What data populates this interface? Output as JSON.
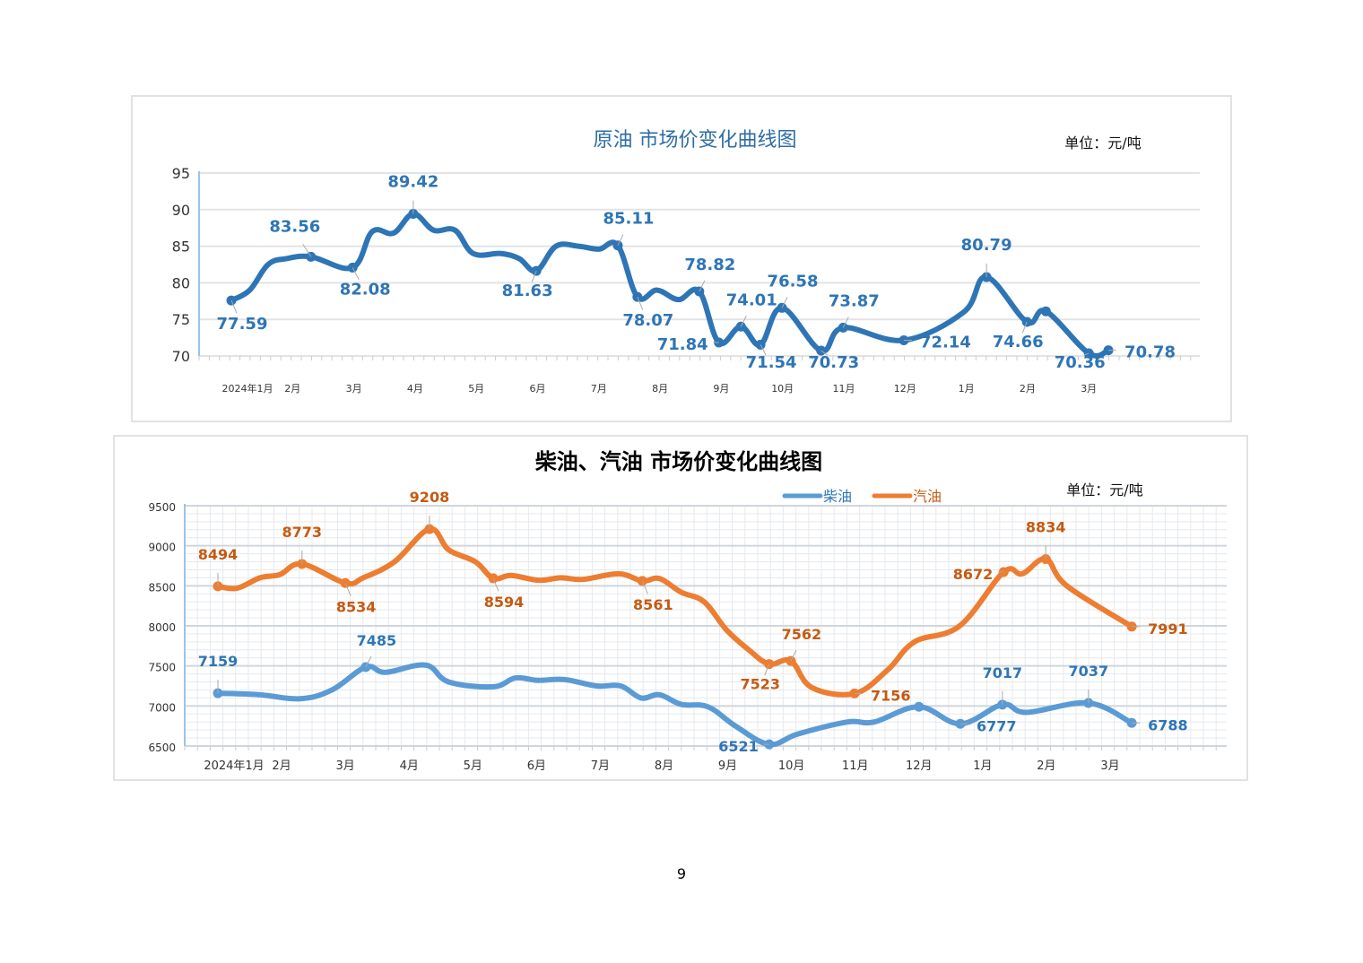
{
  "page_number": "9",
  "chart_data": [
    {
      "type": "line",
      "title": "原油 市场价变化曲线图",
      "unit": "单位：元/吨",
      "categories": [
        "2024年1月",
        "2月",
        "3月",
        "4月",
        "5月",
        "6月",
        "7月",
        "8月",
        "9月",
        "10月",
        "11月",
        "12月",
        "1月",
        "2月",
        "3月"
      ],
      "ylim": [
        70,
        95
      ],
      "yticks": [
        70,
        75,
        80,
        85,
        90,
        95
      ],
      "grid": true,
      "legend": "none",
      "color": "#2e75b6",
      "series": [
        {
          "color": "#2e75b6",
          "points": [
            [
              0.0,
              77.59
            ],
            [
              0.3,
              79
            ],
            [
              0.6,
              82.5
            ],
            [
              0.9,
              83.3
            ],
            [
              1.3,
              83.56
            ],
            [
              1.98,
              82.08
            ],
            [
              2.3,
              87
            ],
            [
              2.65,
              86.8
            ],
            [
              2.97,
              89.42
            ],
            [
              3.3,
              87.2
            ],
            [
              3.65,
              87.2
            ],
            [
              3.95,
              84
            ],
            [
              4.4,
              84
            ],
            [
              4.7,
              83.3
            ],
            [
              4.98,
              81.63
            ],
            [
              5.3,
              85
            ],
            [
              5.67,
              85
            ],
            [
              6.0,
              84.6
            ],
            [
              6.31,
              85.11
            ],
            [
              6.63,
              78.07
            ],
            [
              6.95,
              79
            ],
            [
              7.3,
              77.7
            ],
            [
              7.64,
              78.82
            ],
            [
              7.96,
              71.84
            ],
            [
              8.32,
              74.01
            ],
            [
              8.64,
              71.54
            ],
            [
              8.99,
              76.58
            ],
            [
              9.63,
              70.73
            ],
            [
              9.99,
              73.87
            ],
            [
              10.98,
              72.14
            ],
            [
              11.96,
              76
            ],
            [
              12.33,
              80.79
            ],
            [
              12.99,
              74.66
            ],
            [
              13.3,
              76.1
            ],
            [
              14.0,
              70.36
            ],
            [
              14.32,
              70.78
            ]
          ],
          "labels": [
            {
              "x": 0.0,
              "y": 77.59,
              "text": "77.59",
              "pos": "below"
            },
            {
              "x": 1.3,
              "y": 83.56,
              "text": "83.56",
              "pos": "above-left"
            },
            {
              "x": 1.98,
              "y": 82.08,
              "text": "82.08",
              "pos": "below-right"
            },
            {
              "x": 2.97,
              "y": 89.42,
              "text": "89.42",
              "pos": "above"
            },
            {
              "x": 4.98,
              "y": 81.63,
              "text": "81.63",
              "pos": "below-left"
            },
            {
              "x": 6.31,
              "y": 85.11,
              "text": "85.11",
              "pos": "above-right"
            },
            {
              "x": 6.63,
              "y": 78.07,
              "text": "78.07",
              "pos": "below"
            },
            {
              "x": 7.64,
              "y": 78.82,
              "text": "78.82",
              "pos": "above-right"
            },
            {
              "x": 7.96,
              "y": 71.84,
              "text": "71.84",
              "pos": "left"
            },
            {
              "x": 8.32,
              "y": 74.01,
              "text": "74.01",
              "pos": "above-right"
            },
            {
              "x": 8.64,
              "y": 71.54,
              "text": "71.54",
              "pos": "below"
            },
            {
              "x": 8.99,
              "y": 76.58,
              "text": "76.58",
              "pos": "above-right"
            },
            {
              "x": 9.63,
              "y": 70.73,
              "text": "70.73",
              "pos": "below-right"
            },
            {
              "x": 9.99,
              "y": 73.87,
              "text": "73.87",
              "pos": "above-right"
            },
            {
              "x": 10.98,
              "y": 72.14,
              "text": "72.14",
              "pos": "right"
            },
            {
              "x": 12.33,
              "y": 80.79,
              "text": "80.79",
              "pos": "above"
            },
            {
              "x": 12.99,
              "y": 74.66,
              "text": "74.66",
              "pos": "below-left"
            },
            {
              "x": 13.3,
              "y": 76.1,
              "text": "",
              "pos": "none"
            },
            {
              "x": 14.0,
              "y": 70.36,
              "text": "70.36",
              "pos": "below-left"
            },
            {
              "x": 14.32,
              "y": 70.78,
              "text": "70.78",
              "pos": "right"
            }
          ]
        }
      ]
    },
    {
      "type": "line",
      "title": "柴油、汽油 市场价变化曲线图",
      "unit": "单位：元/吨",
      "categories": [
        "2024年1月",
        "2月",
        "3月",
        "4月",
        "5月",
        "6月",
        "7月",
        "8月",
        "9月",
        "10月",
        "11月",
        "12月",
        "1月",
        "2月",
        "3月"
      ],
      "ylim": [
        6500,
        9500
      ],
      "yticks": [
        6500,
        7000,
        7500,
        8000,
        8500,
        9000,
        9500
      ],
      "grid": true,
      "legend": "top-right",
      "series": [
        {
          "name": "柴油",
          "color": "#5b9bd5",
          "label_color": "#2e75b6",
          "points": [
            [
              0,
              7159
            ],
            [
              0.66,
              7140
            ],
            [
              1.29,
              7090
            ],
            [
              1.79,
              7200
            ],
            [
              2.32,
              7485
            ],
            [
              2.63,
              7420
            ],
            [
              3.26,
              7510
            ],
            [
              3.62,
              7300
            ],
            [
              4.32,
              7240
            ],
            [
              4.67,
              7350
            ],
            [
              5.02,
              7320
            ],
            [
              5.44,
              7330
            ],
            [
              5.94,
              7250
            ],
            [
              6.32,
              7250
            ],
            [
              6.64,
              7100
            ],
            [
              6.93,
              7140
            ],
            [
              7.27,
              7020
            ],
            [
              7.69,
              6990
            ],
            [
              8.12,
              6750
            ],
            [
              8.65,
              6521
            ],
            [
              9.1,
              6650
            ],
            [
              9.88,
              6800
            ],
            [
              10.3,
              6800
            ],
            [
              11.0,
              6990
            ],
            [
              11.65,
              6777
            ],
            [
              12.31,
              7017
            ],
            [
              12.69,
              6920
            ],
            [
              13.66,
              7037
            ],
            [
              14.34,
              6788
            ]
          ],
          "labels": [
            {
              "x": 0,
              "y": 7159,
              "text": "7159",
              "pos": "above"
            },
            {
              "x": 2.32,
              "y": 7485,
              "text": "7485",
              "pos": "above-right"
            },
            {
              "x": 8.65,
              "y": 6521,
              "text": "6521",
              "pos": "left"
            },
            {
              "x": 11.0,
              "y": 6990,
              "text": "",
              "pos": "none"
            },
            {
              "x": 11.65,
              "y": 6777,
              "text": "6777",
              "pos": "right"
            },
            {
              "x": 12.31,
              "y": 7017,
              "text": "7017",
              "pos": "above"
            },
            {
              "x": 13.66,
              "y": 7037,
              "text": "7037",
              "pos": "above"
            },
            {
              "x": 14.34,
              "y": 6788,
              "text": "6788",
              "pos": "right"
            }
          ]
        },
        {
          "name": "汽油",
          "color": "#ed7d31",
          "label_color": "#c55a11",
          "points": [
            [
              0,
              8494
            ],
            [
              0.3,
              8470
            ],
            [
              0.66,
              8600
            ],
            [
              0.97,
              8640
            ],
            [
              1.32,
              8773
            ],
            [
              2.0,
              8534
            ],
            [
              2.28,
              8600
            ],
            [
              2.77,
              8800
            ],
            [
              3.32,
              9208
            ],
            [
              3.62,
              8950
            ],
            [
              4.04,
              8800
            ],
            [
              4.32,
              8594
            ],
            [
              4.6,
              8630
            ],
            [
              5.03,
              8570
            ],
            [
              5.38,
              8600
            ],
            [
              5.73,
              8580
            ],
            [
              6.29,
              8650
            ],
            [
              6.66,
              8561
            ],
            [
              6.93,
              8590
            ],
            [
              7.27,
              8420
            ],
            [
              7.63,
              8300
            ],
            [
              7.98,
              7950
            ],
            [
              8.33,
              7700
            ],
            [
              8.65,
              7523
            ],
            [
              8.99,
              7562
            ],
            [
              9.32,
              7230
            ],
            [
              9.99,
              7156
            ],
            [
              10.51,
              7450
            ],
            [
              10.93,
              7800
            ],
            [
              11.64,
              8000
            ],
            [
              12.33,
              8672
            ],
            [
              12.62,
              8650
            ],
            [
              12.99,
              8834
            ],
            [
              13.32,
              8500
            ],
            [
              14.34,
              7991
            ]
          ],
          "labels": [
            {
              "x": 0,
              "y": 8494,
              "text": "8494",
              "pos": "above"
            },
            {
              "x": 1.32,
              "y": 8773,
              "text": "8773",
              "pos": "above"
            },
            {
              "x": 2.0,
              "y": 8534,
              "text": "8534",
              "pos": "below"
            },
            {
              "x": 3.32,
              "y": 9208,
              "text": "9208",
              "pos": "above"
            },
            {
              "x": 4.32,
              "y": 8594,
              "text": "8594",
              "pos": "below"
            },
            {
              "x": 6.66,
              "y": 8561,
              "text": "8561",
              "pos": "below"
            },
            {
              "x": 8.65,
              "y": 7523,
              "text": "7523",
              "pos": "below-left"
            },
            {
              "x": 8.99,
              "y": 7562,
              "text": "7562",
              "pos": "above-right"
            },
            {
              "x": 9.99,
              "y": 7156,
              "text": "7156",
              "pos": "right"
            },
            {
              "x": 12.33,
              "y": 8672,
              "text": "8672",
              "pos": "left"
            },
            {
              "x": 12.99,
              "y": 8834,
              "text": "8834",
              "pos": "above"
            },
            {
              "x": 14.34,
              "y": 7991,
              "text": "7991",
              "pos": "right"
            }
          ]
        }
      ]
    }
  ]
}
